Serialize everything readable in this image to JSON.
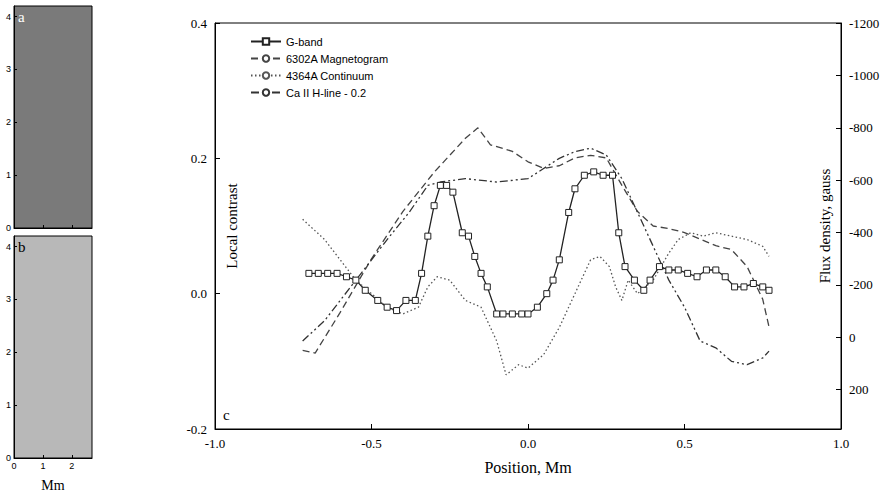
{
  "chart_data": [
    {
      "type": "image",
      "title": "a",
      "xlim": [
        0,
        2.7
      ],
      "ylim": [
        0,
        4.2
      ],
      "xticks": [
        0,
        1,
        2
      ],
      "yticks": [
        0,
        1,
        2,
        3,
        4
      ],
      "tick_labels": "y",
      "color": "#7a7a7a"
    },
    {
      "type": "image",
      "title": "b",
      "x_label": "Mm",
      "xlim": [
        0,
        2.7
      ],
      "ylim": [
        0,
        4.2
      ],
      "xticks": [
        0,
        1,
        2
      ],
      "yticks": [
        0,
        1,
        2,
        3,
        4
      ],
      "color": "#b8b8b8"
    },
    {
      "type": "line",
      "title": "c",
      "x_label": "Position, Mm",
      "y_label": "Local contrast",
      "y2_label": "Flux density, gauss",
      "xlim": [
        -1,
        1
      ],
      "xticks": [
        {
          "value": -1,
          "label": "-1.0"
        },
        {
          "value": -0.5,
          "label": "-0.5"
        },
        {
          "value": 0,
          "label": "0.0"
        },
        {
          "value": 0.5,
          "label": "0.5"
        },
        {
          "value": 1,
          "label": "1.0"
        }
      ],
      "ylim": [
        -0.2,
        0.4
      ],
      "yticks": [
        -0.2,
        {
          "value": 0,
          "label": "0.0"
        },
        0.2,
        0.4
      ],
      "y2lim": [
        -1200,
        350
      ],
      "y2ticks": [
        -1200,
        -1000,
        -800,
        -600,
        -400,
        -200,
        0,
        200
      ],
      "legend": "upper left",
      "series": [
        {
          "name": "G-band",
          "color": "#222222",
          "marker": "square",
          "line_style": "solid",
          "x": [
            -0.7,
            -0.67,
            -0.64,
            -0.61,
            -0.58,
            -0.55,
            -0.52,
            -0.48,
            -0.45,
            -0.42,
            -0.39,
            -0.36,
            -0.34,
            -0.32,
            -0.3,
            -0.28,
            -0.26,
            -0.24,
            -0.21,
            -0.19,
            -0.17,
            -0.15,
            -0.13,
            -0.1,
            -0.08,
            -0.05,
            -0.02,
            0,
            0.03,
            0.06,
            0.08,
            0.1,
            0.13,
            0.15,
            0.18,
            0.21,
            0.24,
            0.27,
            0.29,
            0.31,
            0.34,
            0.37,
            0.39,
            0.42,
            0.45,
            0.48,
            0.51,
            0.54,
            0.57,
            0.6,
            0.63,
            0.66,
            0.69,
            0.72,
            0.75,
            0.77
          ],
          "values": [
            0.03,
            0.03,
            0.03,
            0.03,
            0.025,
            0.02,
            0.005,
            -0.01,
            -0.02,
            -0.025,
            -0.01,
            -0.01,
            0.03,
            0.085,
            0.13,
            0.16,
            0.16,
            0.15,
            0.09,
            0.085,
            0.055,
            0.03,
            0.01,
            -0.03,
            -0.03,
            -0.03,
            -0.03,
            -0.03,
            -0.02,
            0,
            0.02,
            0.05,
            0.12,
            0.155,
            0.175,
            0.18,
            0.175,
            0.175,
            0.09,
            0.04,
            0.02,
            0.005,
            0.02,
            0.04,
            0.035,
            0.035,
            0.03,
            0.025,
            0.035,
            0.035,
            0.025,
            0.01,
            0.01,
            0.015,
            0.01,
            0.005
          ]
        },
        {
          "name": "6302A Magnetogram",
          "color": "#444444",
          "line_style": "dashed",
          "axis": "y2",
          "x": [
            -0.72,
            -0.68,
            -0.6,
            -0.5,
            -0.4,
            -0.3,
            -0.2,
            -0.16,
            -0.12,
            -0.05,
            0,
            0.05,
            0.1,
            0.15,
            0.2,
            0.25,
            0.3,
            0.35,
            0.4,
            0.45,
            0.5,
            0.55,
            0.6,
            0.65,
            0.7,
            0.75,
            0.77
          ],
          "values": [
            50,
            60,
            -95,
            -300,
            -480,
            -630,
            -760,
            -800,
            -735,
            -710,
            -670,
            -645,
            -655,
            -685,
            -695,
            -685,
            -580,
            -480,
            -425,
            -415,
            -400,
            -375,
            -350,
            -335,
            -270,
            -145,
            -40
          ]
        },
        {
          "name": "4364A Continuum",
          "color": "#555555",
          "line_style": "dotted",
          "x": [
            -0.72,
            -0.65,
            -0.6,
            -0.55,
            -0.5,
            -0.45,
            -0.4,
            -0.35,
            -0.32,
            -0.29,
            -0.25,
            -0.2,
            -0.15,
            -0.1,
            -0.07,
            -0.03,
            0,
            0.05,
            0.1,
            0.15,
            0.2,
            0.23,
            0.26,
            0.28,
            0.3,
            0.32,
            0.35,
            0.4,
            0.45,
            0.48,
            0.52,
            0.56,
            0.6,
            0.65,
            0.7,
            0.75,
            0.77
          ],
          "values": [
            0.11,
            0.08,
            0.05,
            0.02,
            0,
            -0.02,
            -0.03,
            -0.02,
            0.01,
            0.025,
            0.02,
            -0.01,
            -0.02,
            -0.07,
            -0.12,
            -0.105,
            -0.11,
            -0.09,
            -0.05,
            0,
            0.05,
            0.055,
            0.04,
            0.01,
            -0.01,
            0.02,
            0,
            0.02,
            0.06,
            0.08,
            0.09,
            0.085,
            0.09,
            0.085,
            0.08,
            0.07,
            0.055
          ]
        },
        {
          "name": "Ca II H-line - 0.2",
          "color": "#333333",
          "line_style": "dashdot",
          "x": [
            -0.72,
            -0.65,
            -0.55,
            -0.45,
            -0.38,
            -0.32,
            -0.28,
            -0.2,
            -0.1,
            0,
            0.05,
            0.1,
            0.15,
            0.2,
            0.25,
            0.3,
            0.35,
            0.4,
            0.45,
            0.5,
            0.55,
            0.6,
            0.65,
            0.7,
            0.75,
            0.77
          ],
          "values": [
            -0.07,
            -0.04,
            0.02,
            0.08,
            0.12,
            0.16,
            0.165,
            0.17,
            0.165,
            0.17,
            0.185,
            0.2,
            0.21,
            0.215,
            0.205,
            0.17,
            0.12,
            0.07,
            0.02,
            -0.02,
            -0.07,
            -0.08,
            -0.1,
            -0.105,
            -0.095,
            -0.085
          ]
        }
      ]
    }
  ]
}
